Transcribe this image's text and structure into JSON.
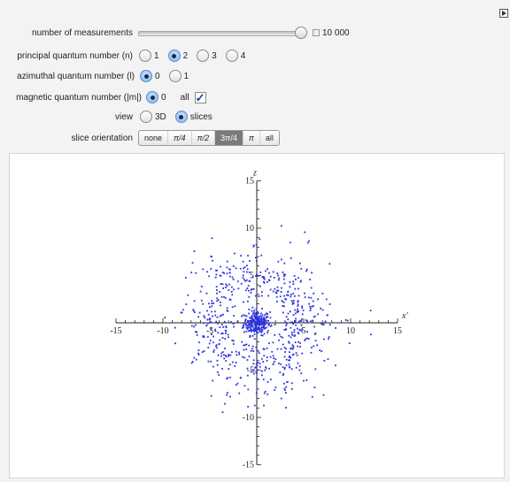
{
  "controls": {
    "measurements": {
      "label": "number of measurements",
      "value": "10 000",
      "fraction": 0.96
    },
    "n": {
      "label": "principal quantum number (n)",
      "options": [
        "1",
        "2",
        "3",
        "4"
      ],
      "selected": "2"
    },
    "l": {
      "label": "azimuthal quantum number (l)",
      "options": [
        "0",
        "1"
      ],
      "selected": "0"
    },
    "m": {
      "label": "magnetic quantum number (|m|)",
      "options": [
        "0"
      ],
      "selected": "0",
      "all_label": "all",
      "all_checked": true
    },
    "view": {
      "label": "view",
      "options": [
        "3D",
        "slices"
      ],
      "selected": "slices"
    },
    "slice": {
      "label": "slice orientation",
      "options": [
        "none",
        "π/4",
        "π/2",
        "3π/4",
        "π",
        "all"
      ],
      "selected": "3π/4"
    }
  },
  "plot": {
    "xlabel": "x′",
    "zlabel": "z",
    "xlim": [
      -15,
      15
    ],
    "zlim": [
      -15,
      15
    ],
    "xticks": [
      "-15",
      "-10",
      "-5",
      "5",
      "10",
      "15"
    ],
    "zticks": [
      "15",
      "10",
      "5",
      "-5",
      "-10",
      "-15"
    ],
    "point_color": "#2a33e0"
  }
}
